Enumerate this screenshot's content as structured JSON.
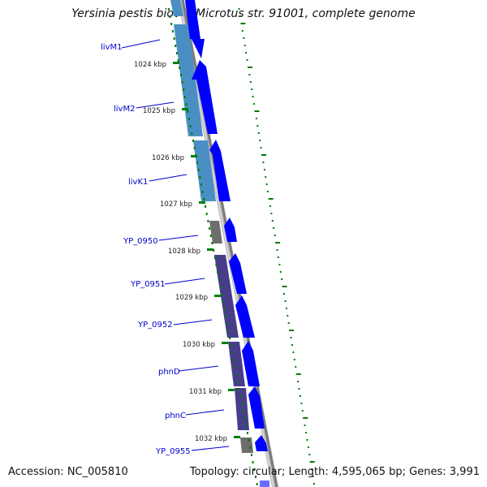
{
  "title": "Yersinia pestis biovar Microtus str. 91001, complete genome",
  "accession": "Accession: NC_005810",
  "summary": "Topology: circular; Length: 4,595,065 bp; Genes: 3,991",
  "colors": {
    "gene_label": "#0000cc",
    "cds_arrow": "#0000ff",
    "blast_blue": "#4a8fc4",
    "blast_purple": "#483d8b",
    "blast_gray": "#6e6e6e",
    "backbone": "#9a9a9a",
    "gc_dots": "#007a00",
    "scale_ticks": "#008000"
  },
  "genes": [
    {
      "label": "livM1"
    },
    {
      "label": "livM2"
    },
    {
      "label": "livK1"
    },
    {
      "label": "YP_0950"
    },
    {
      "label": "YP_0951"
    },
    {
      "label": "YP_0952"
    },
    {
      "label": "phnD"
    },
    {
      "label": "phnC"
    },
    {
      "label": "YP_0955"
    }
  ],
  "scale_ticks": [
    {
      "label": "1024 kbp"
    },
    {
      "label": "1025 kbp"
    },
    {
      "label": "1026 kbp"
    },
    {
      "label": "1027 kbp"
    },
    {
      "label": "1028 kbp"
    },
    {
      "label": "1029 kbp"
    },
    {
      "label": "1030 kbp"
    },
    {
      "label": "1031 kbp"
    },
    {
      "label": "1032 kbp"
    }
  ]
}
